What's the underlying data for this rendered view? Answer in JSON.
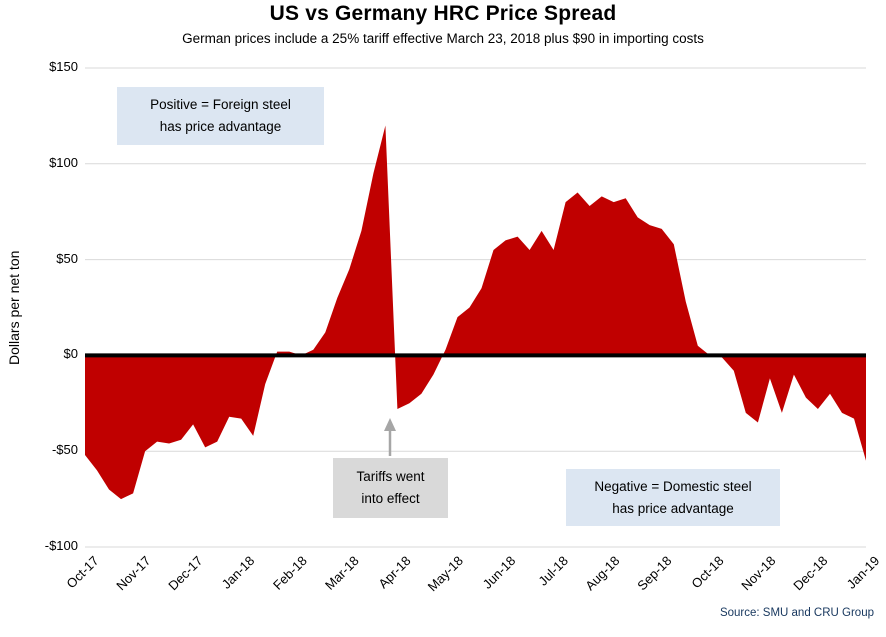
{
  "title": "US vs Germany HRC Price Spread",
  "subtitle": "German prices include a 25% tariff effective March 23, 2018 plus $90 in importing costs",
  "source": "Source: SMU and CRU Group",
  "annotations": {
    "positive": "Positive = Foreign steel\nhas price advantage",
    "tariffs": "Tariffs went\ninto effect",
    "negative": "Negative = Domestic steel\nhas price advantage"
  },
  "colors": {
    "area": "#c00000",
    "gridline": "#d9d9d9",
    "zero_line": "#000000",
    "note_blue_bg": "#dce6f2",
    "note_gray_bg": "#d9d9d9",
    "arrow": "#a6a6a6",
    "source_text": "#17375e"
  },
  "chart_data": {
    "type": "area",
    "title": "US vs Germany HRC Price Spread",
    "xlabel": "",
    "ylabel": "Dollars per net ton",
    "ylim": [
      -100,
      150
    ],
    "yticks": [
      150,
      100,
      50,
      0,
      -50,
      -100
    ],
    "ytick_labels": [
      "$150",
      "$100",
      "$50",
      "$0",
      "-$50",
      "-$100"
    ],
    "grid": "horizontal",
    "x_frequency": "weekly",
    "categories": [
      "Oct-17",
      "Nov-17",
      "Dec-17",
      "Jan-18",
      "Feb-18",
      "Mar-18",
      "Apr-18",
      "May-18",
      "Jun-18",
      "Jul-18",
      "Aug-18",
      "Sep-18",
      "Oct-18",
      "Nov-18",
      "Dec-18",
      "Jan-19"
    ],
    "values": [
      -52,
      -60,
      -70,
      -75,
      -72,
      -50,
      -45,
      -46,
      -44,
      -36,
      -48,
      -45,
      -32,
      -33,
      -42,
      -15,
      2,
      2,
      0,
      3,
      12,
      30,
      45,
      65,
      95,
      120,
      -28,
      -25,
      -20,
      -10,
      3,
      20,
      25,
      35,
      55,
      60,
      62,
      55,
      65,
      55,
      80,
      85,
      78,
      83,
      80,
      82,
      72,
      68,
      66,
      58,
      28,
      5,
      0,
      -1,
      -8,
      -30,
      -35,
      -12,
      -30,
      -10,
      -22,
      -28,
      -20,
      -30,
      -33,
      -55
    ],
    "events": [
      {
        "label": "Tariffs went into effect",
        "x_category": "Apr-18",
        "value_at_event": -28
      }
    ]
  }
}
